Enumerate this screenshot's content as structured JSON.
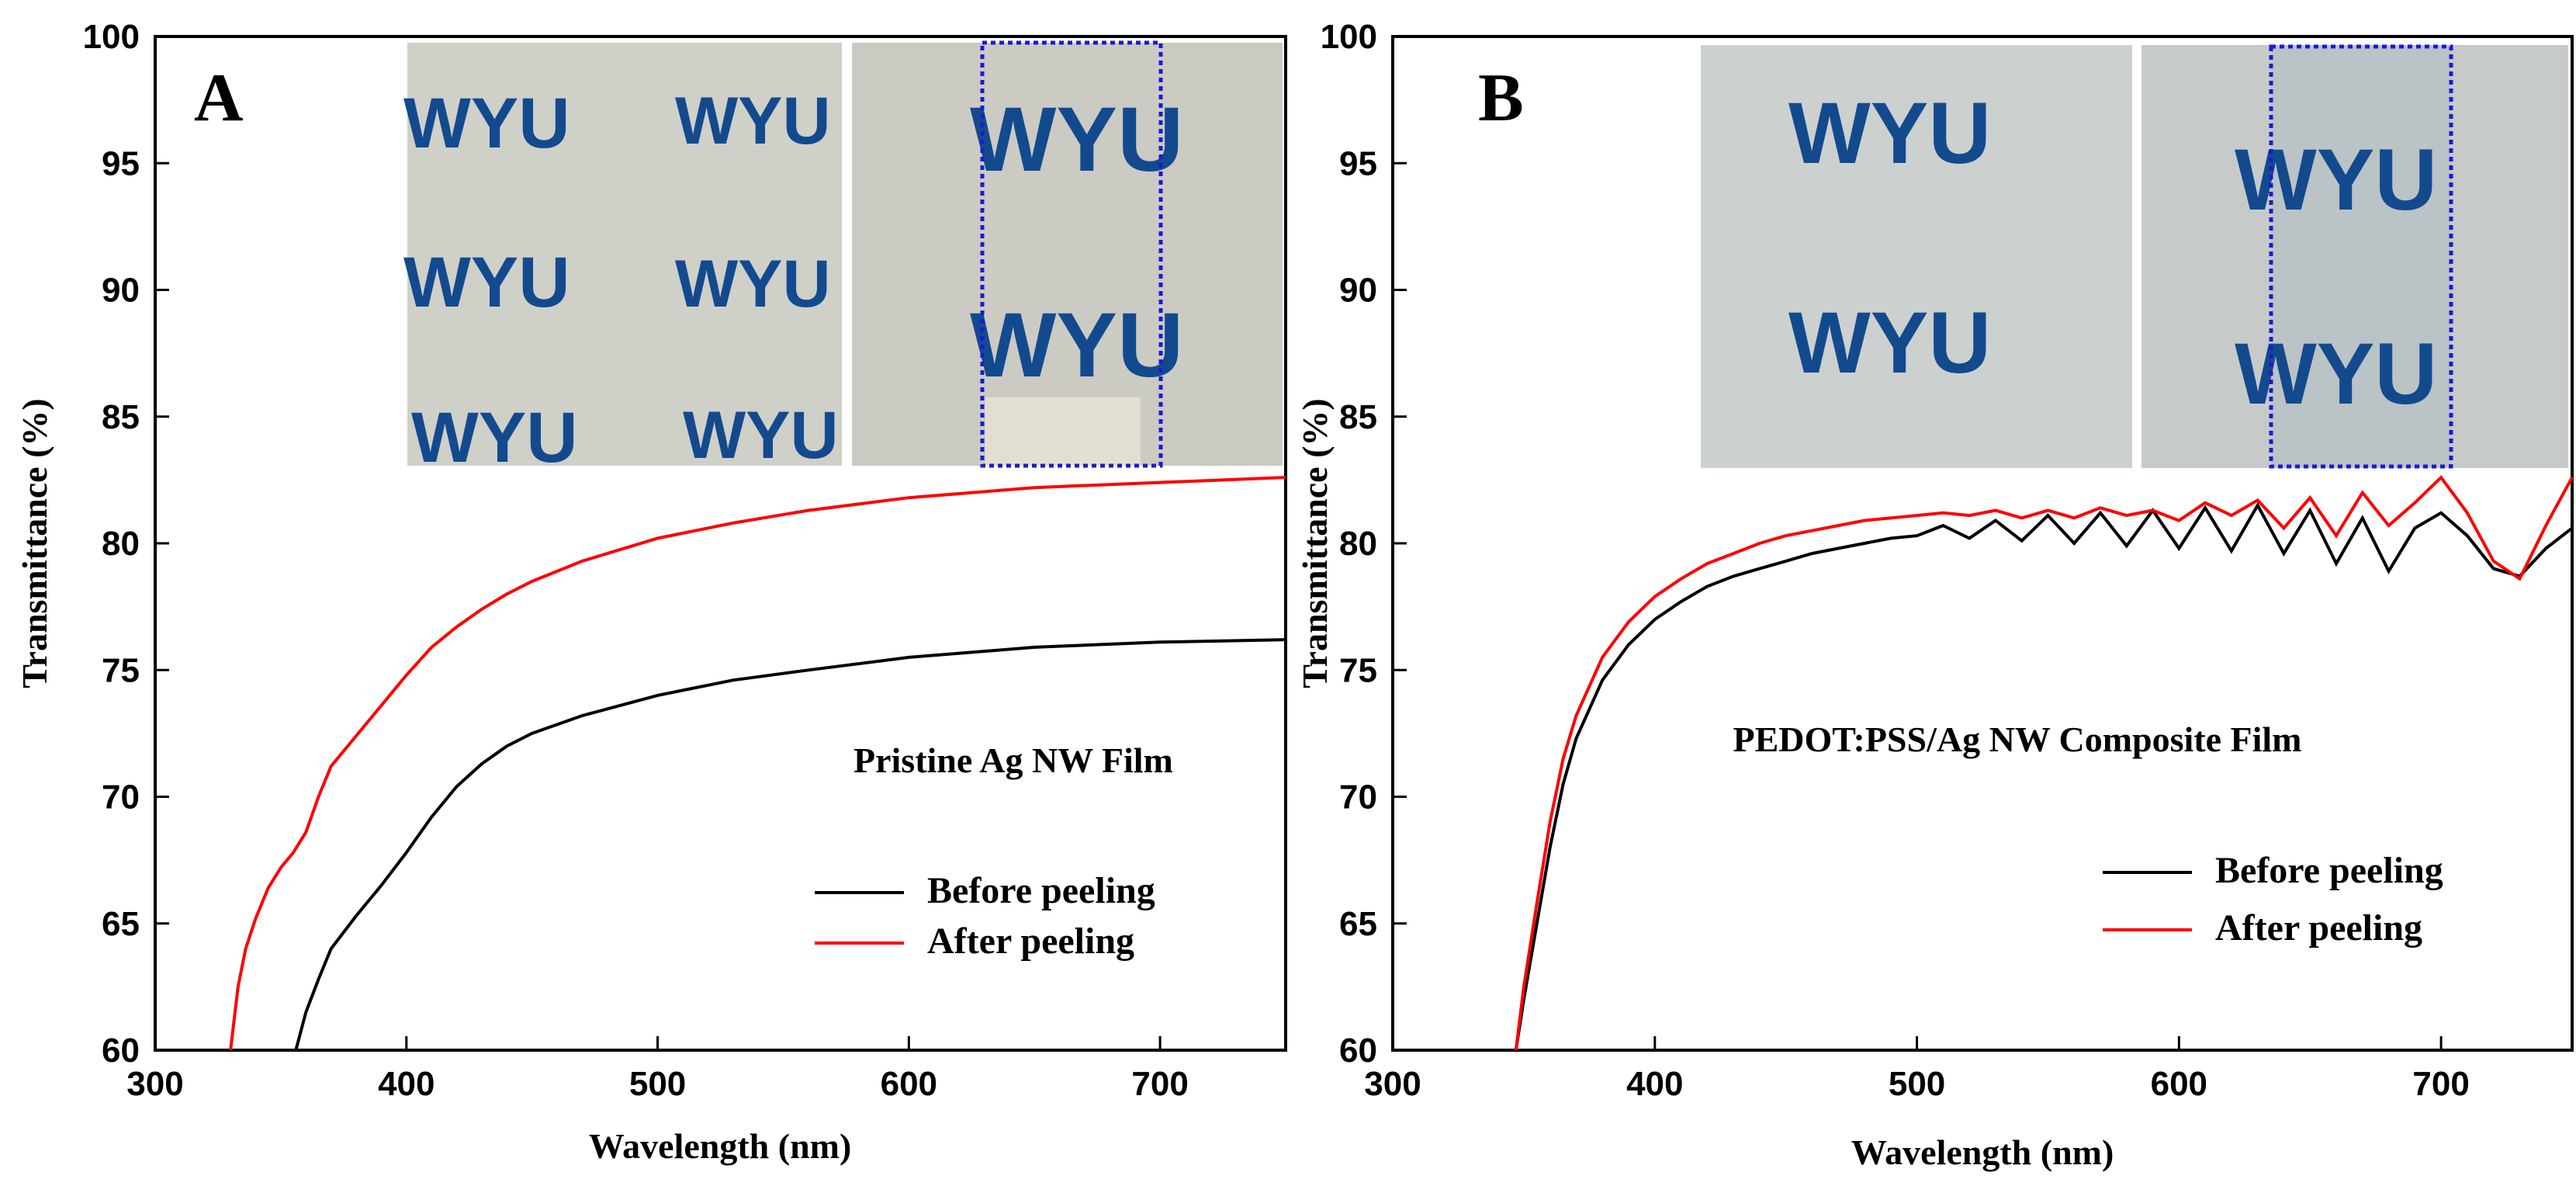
{
  "chart_data": [
    {
      "type": "line",
      "panel_label": "A",
      "annotation": "Pristine Ag NW  Film",
      "xlabel": "Wavelength (nm)",
      "ylabel": "Transmittance (%)",
      "xlim": [
        300,
        750
      ],
      "ylim": [
        60,
        100
      ],
      "xticks": [
        300,
        400,
        500,
        600,
        700
      ],
      "yticks": [
        60,
        65,
        70,
        75,
        80,
        85,
        90,
        95,
        100
      ],
      "legend": {
        "location": "lower-right",
        "entries": [
          "Before peeling",
          "After peeling"
        ]
      },
      "series": [
        {
          "name": "Before peeling",
          "color": "#000000",
          "x": [
            356,
            360,
            365,
            370,
            380,
            390,
            400,
            410,
            420,
            430,
            440,
            450,
            470,
            500,
            530,
            560,
            600,
            650,
            700,
            750
          ],
          "y": [
            60.0,
            61.5,
            62.8,
            64.0,
            65.3,
            66.5,
            67.8,
            69.2,
            70.4,
            71.3,
            72.0,
            72.5,
            73.2,
            74.0,
            74.6,
            75.0,
            75.5,
            75.9,
            76.1,
            76.2
          ]
        },
        {
          "name": "After peeling",
          "color": "#ff0000",
          "x": [
            330,
            333,
            336,
            340,
            345,
            350,
            355,
            360,
            365,
            370,
            380,
            390,
            400,
            410,
            420,
            430,
            440,
            450,
            470,
            500,
            530,
            560,
            600,
            650,
            700,
            750
          ],
          "y": [
            60.0,
            62.5,
            64.0,
            65.2,
            66.4,
            67.2,
            67.8,
            68.6,
            70.0,
            71.2,
            72.4,
            73.6,
            74.8,
            75.9,
            76.7,
            77.4,
            78.0,
            78.5,
            79.3,
            80.2,
            80.8,
            81.3,
            81.8,
            82.2,
            82.4,
            82.6
          ]
        }
      ]
    },
    {
      "type": "line",
      "panel_label": "B",
      "annotation": "PEDOT:PSS/Ag NW Composite Film",
      "xlabel": "Wavelength (nm)",
      "ylabel": "Transmittance (%)",
      "xlim": [
        300,
        750
      ],
      "ylim": [
        60,
        100
      ],
      "xticks": [
        300,
        400,
        500,
        600,
        700
      ],
      "yticks": [
        60,
        65,
        70,
        75,
        80,
        85,
        90,
        95,
        100
      ],
      "legend": {
        "location": "lower-right",
        "entries": [
          "Before peeling",
          "After peeling"
        ]
      },
      "series": [
        {
          "name": "Before peeling",
          "color": "#000000",
          "x": [
            347,
            350,
            355,
            360,
            365,
            370,
            380,
            390,
            400,
            410,
            420,
            430,
            440,
            450,
            460,
            470,
            480,
            490,
            500,
            510,
            520,
            530,
            540,
            550,
            560,
            570,
            580,
            590,
            600,
            610,
            620,
            630,
            640,
            650,
            660,
            670,
            680,
            690,
            700,
            710,
            720,
            730,
            740,
            750
          ],
          "y": [
            60.0,
            62.0,
            65.0,
            68.0,
            70.5,
            72.3,
            74.6,
            76.0,
            77.0,
            77.7,
            78.3,
            78.7,
            79.0,
            79.3,
            79.6,
            79.8,
            80.0,
            80.2,
            80.3,
            80.7,
            80.2,
            80.9,
            80.1,
            81.1,
            80.0,
            81.2,
            79.9,
            81.3,
            79.8,
            81.4,
            79.7,
            81.5,
            79.6,
            81.3,
            79.2,
            81.0,
            78.9,
            80.6,
            81.2,
            80.3,
            79.0,
            78.7,
            79.8,
            80.6
          ]
        },
        {
          "name": "After peeling",
          "color": "#ff0000",
          "x": [
            347,
            350,
            355,
            360,
            365,
            370,
            380,
            390,
            400,
            410,
            420,
            430,
            440,
            450,
            460,
            470,
            480,
            490,
            500,
            510,
            520,
            530,
            540,
            550,
            560,
            570,
            580,
            590,
            600,
            610,
            620,
            630,
            640,
            650,
            660,
            670,
            680,
            690,
            700,
            710,
            720,
            730,
            740,
            750
          ],
          "y": [
            60.0,
            62.5,
            65.8,
            69.0,
            71.5,
            73.2,
            75.5,
            76.9,
            77.9,
            78.6,
            79.2,
            79.6,
            80.0,
            80.3,
            80.5,
            80.7,
            80.9,
            81.0,
            81.1,
            81.2,
            81.1,
            81.3,
            81.0,
            81.3,
            81.0,
            81.4,
            81.1,
            81.3,
            80.9,
            81.6,
            81.1,
            81.7,
            80.6,
            81.8,
            80.3,
            82.0,
            80.7,
            81.6,
            82.6,
            81.2,
            79.3,
            78.6,
            80.7,
            82.6
          ]
        }
      ]
    }
  ],
  "insets": {
    "A_left_marks": [
      "WYU",
      "WYU",
      "WYU",
      "WYU",
      "WYU",
      "WYU"
    ],
    "A_right_marks": [
      "WYU",
      "WYU"
    ],
    "B_left_marks": [
      "WYU",
      "WYU"
    ],
    "B_right_marks": [
      "WYU",
      "WYU"
    ]
  },
  "colors": {
    "before": "#000000",
    "after": "#ff0000",
    "highlight_box": "#1d1ad1",
    "wyu_text": "#134a8e",
    "photo_bg": "#cfd0c8"
  }
}
